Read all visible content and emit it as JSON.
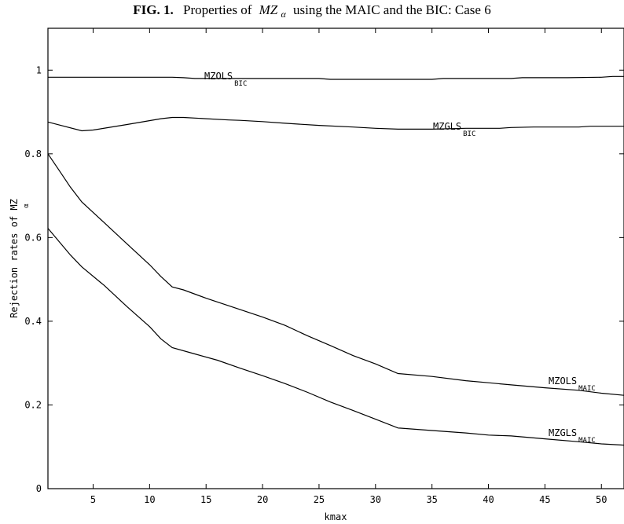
{
  "title": {
    "fig": "FIG. 1.",
    "text_before": "Properties of",
    "math_main": "MZ",
    "math_sub": "α",
    "text_after": "using the MAIC and the BIC: Case 6"
  },
  "chart_data": {
    "type": "line",
    "xlabel": "kmax",
    "ylabel_main": "Rejection rates of MZ",
    "ylabel_sub": "α",
    "xlim": [
      1,
      52
    ],
    "ylim": [
      0,
      1.1
    ],
    "xticks": [
      5,
      10,
      15,
      20,
      25,
      30,
      35,
      40,
      45,
      50
    ],
    "xtick_labels": [
      "5",
      "10",
      "15",
      "20",
      "25",
      "30",
      "35",
      "40",
      "45",
      "50"
    ],
    "yticks": [
      0,
      0.2,
      0.4,
      0.6,
      0.8,
      1
    ],
    "ytick_labels": [
      "0",
      "0.2",
      "0.4",
      "0.6",
      "0.8",
      "1"
    ],
    "grid": false,
    "series": [
      {
        "name": "MZOLS",
        "name_sub": "BIC",
        "x": [
          1,
          4,
          8,
          12,
          13,
          14,
          16,
          20,
          25,
          26,
          30,
          35,
          36,
          40,
          42,
          43,
          47,
          50,
          51,
          52
        ],
        "y": [
          0.983,
          0.983,
          0.983,
          0.983,
          0.982,
          0.98,
          0.98,
          0.98,
          0.98,
          0.978,
          0.978,
          0.978,
          0.98,
          0.98,
          0.98,
          0.982,
          0.982,
          0.983,
          0.985,
          0.985
        ]
      },
      {
        "name": "MZGLS",
        "name_sub": "BIC",
        "x": [
          1,
          2,
          4,
          5,
          8,
          11,
          12,
          13,
          15,
          17,
          18,
          20,
          22,
          25,
          28,
          30,
          32,
          35,
          38,
          41,
          42,
          44,
          48,
          49,
          52
        ],
        "y": [
          0.876,
          0.869,
          0.855,
          0.857,
          0.87,
          0.884,
          0.887,
          0.887,
          0.884,
          0.881,
          0.88,
          0.877,
          0.873,
          0.868,
          0.864,
          0.861,
          0.859,
          0.859,
          0.861,
          0.861,
          0.863,
          0.864,
          0.864,
          0.866,
          0.866
        ]
      },
      {
        "name": "MZOLS",
        "name_sub": "MAIC",
        "x": [
          1,
          2,
          3,
          4,
          6,
          8,
          10,
          11,
          12,
          13,
          15,
          17,
          20,
          22,
          24,
          26,
          28,
          30,
          32,
          35,
          38,
          40,
          42,
          45,
          48,
          50,
          52
        ],
        "y": [
          0.8,
          0.76,
          0.72,
          0.685,
          0.635,
          0.585,
          0.535,
          0.507,
          0.482,
          0.475,
          0.455,
          0.437,
          0.41,
          0.39,
          0.365,
          0.342,
          0.318,
          0.298,
          0.275,
          0.268,
          0.258,
          0.253,
          0.248,
          0.241,
          0.235,
          0.228,
          0.223
        ]
      },
      {
        "name": "MZGLS",
        "name_sub": "MAIC",
        "x": [
          1,
          2,
          3,
          4,
          6,
          8,
          10,
          11,
          12,
          14,
          16,
          18,
          20,
          22,
          24,
          26,
          28,
          30,
          32,
          35,
          38,
          40,
          42,
          45,
          48,
          50,
          52
        ],
        "y": [
          0.622,
          0.59,
          0.558,
          0.53,
          0.485,
          0.435,
          0.387,
          0.358,
          0.337,
          0.322,
          0.307,
          0.288,
          0.27,
          0.251,
          0.23,
          0.207,
          0.187,
          0.166,
          0.145,
          0.139,
          0.133,
          0.128,
          0.126,
          0.119,
          0.112,
          0.107,
          0.104
        ]
      }
    ]
  }
}
